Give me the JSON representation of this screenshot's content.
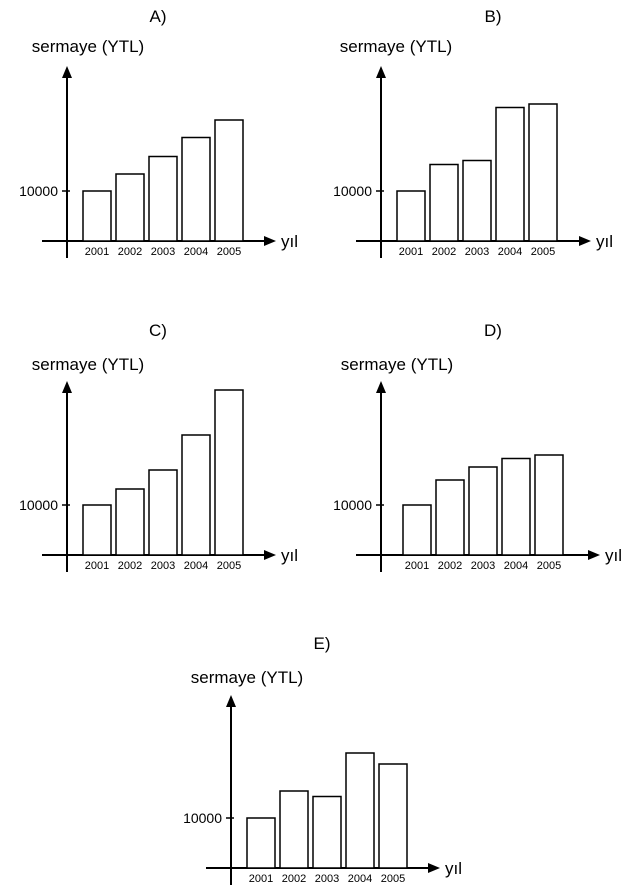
{
  "colors": {
    "ink": "#000000",
    "bar_fill": "#ffffff"
  },
  "chart_data": [
    {
      "type": "bar",
      "title": "A)",
      "ylabel": "sermaye (YTL)",
      "xlabel": "yıl",
      "categories": [
        "2001",
        "2002",
        "2003",
        "2004",
        "2005"
      ],
      "values": [
        10000,
        13400,
        16900,
        20700,
        24200
      ],
      "yticks": [
        10000
      ],
      "ytick_labels": [
        "10000"
      ],
      "ylim": [
        0,
        37500
      ],
      "grid": false
    },
    {
      "type": "bar",
      "title": "B)",
      "ylabel": "sermaye (YTL)",
      "xlabel": "yıl",
      "categories": [
        "2001",
        "2002",
        "2003",
        "2004",
        "2005"
      ],
      "values": [
        10000,
        15300,
        16100,
        26700,
        27400
      ],
      "yticks": [
        10000
      ],
      "ytick_labels": [
        "10000"
      ],
      "ylim": [
        0,
        37500
      ],
      "grid": false
    },
    {
      "type": "bar",
      "title": "C)",
      "ylabel": "sermaye (YTL)",
      "xlabel": "yıl",
      "categories": [
        "2001",
        "2002",
        "2003",
        "2004",
        "2005"
      ],
      "values": [
        10000,
        13200,
        17000,
        24000,
        33000
      ],
      "yticks": [
        10000
      ],
      "ytick_labels": [
        "10000"
      ],
      "ylim": [
        0,
        37500
      ],
      "grid": false
    },
    {
      "type": "bar",
      "title": "D)",
      "ylabel": "sermaye (YTL)",
      "xlabel": "yıl",
      "categories": [
        "2001",
        "2002",
        "2003",
        "2004",
        "2005"
      ],
      "values": [
        10000,
        15000,
        17600,
        19300,
        20000
      ],
      "yticks": [
        10000
      ],
      "ytick_labels": [
        "10000"
      ],
      "ylim": [
        0,
        37500
      ],
      "grid": false
    },
    {
      "type": "bar",
      "title": "E)",
      "ylabel": "sermaye (YTL)",
      "xlabel": "yıl",
      "categories": [
        "2001",
        "2002",
        "2003",
        "2004",
        "2005"
      ],
      "values": [
        10000,
        15400,
        14300,
        23000,
        20800
      ],
      "yticks": [
        10000
      ],
      "ytick_labels": [
        "10000"
      ],
      "ylim": [
        0,
        37500
      ],
      "grid": false
    }
  ]
}
